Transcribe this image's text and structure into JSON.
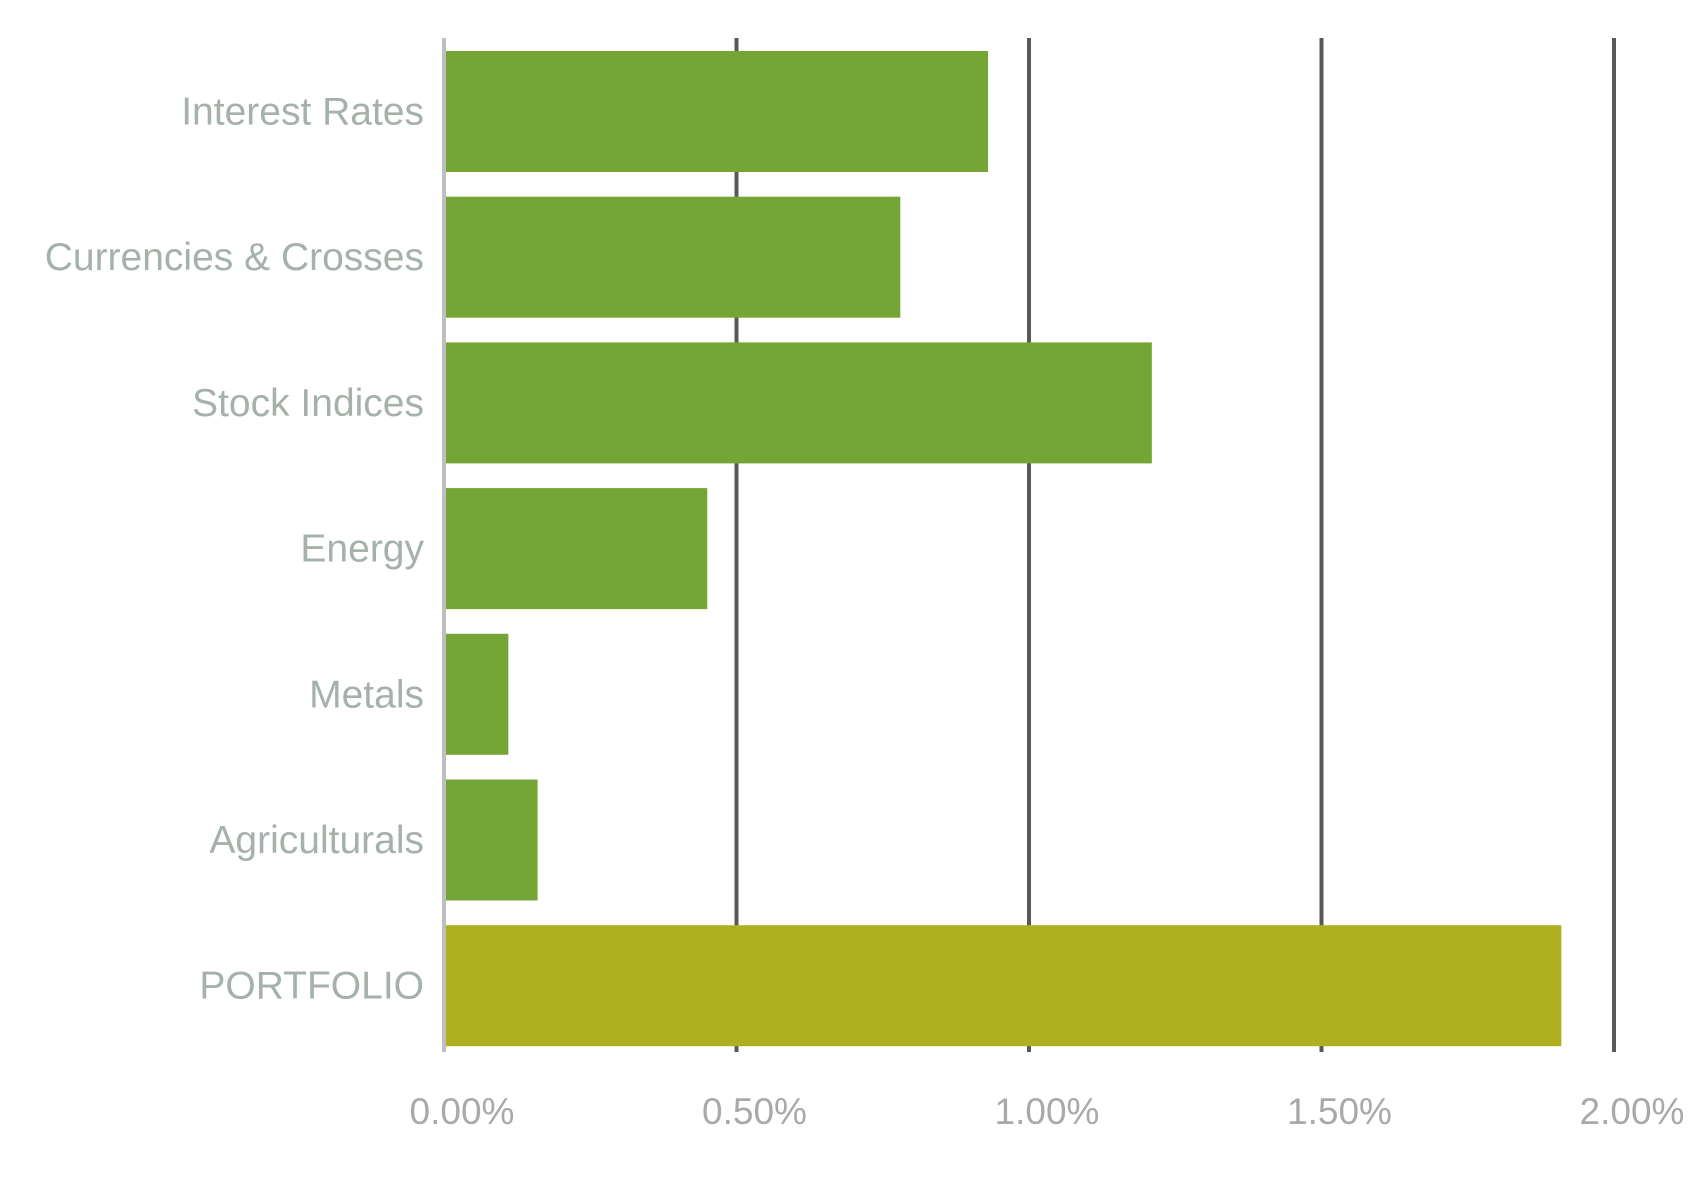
{
  "chart_data": {
    "type": "bar",
    "orientation": "horizontal",
    "title": "",
    "xlabel": "",
    "ylabel": "",
    "categories": [
      "Interest Rates",
      "Currencies & Crosses",
      "Stock Indices",
      "Energy",
      "Metals",
      "Agriculturals",
      "PORTFOLIO"
    ],
    "values": [
      0.93,
      0.78,
      1.21,
      0.45,
      0.11,
      0.16,
      1.91
    ],
    "value_unit": "%",
    "xlim": [
      0,
      2.0
    ],
    "x_ticks": [
      0,
      0.5,
      1.0,
      1.5,
      2.0
    ],
    "x_tick_labels": [
      "0.00%",
      "0.50%",
      "1.00%",
      "1.50%",
      "2.00%"
    ],
    "grid": "vertical",
    "legend": "none",
    "colors": {
      "bar": "#74a535",
      "highlight_bar": "#afb01f",
      "gridline": "#595959",
      "baseline": "#bfbfbf",
      "category_text": "#a6b1aa",
      "tick_text": "#a8aaa9"
    },
    "highlight_category": "PORTFOLIO"
  }
}
